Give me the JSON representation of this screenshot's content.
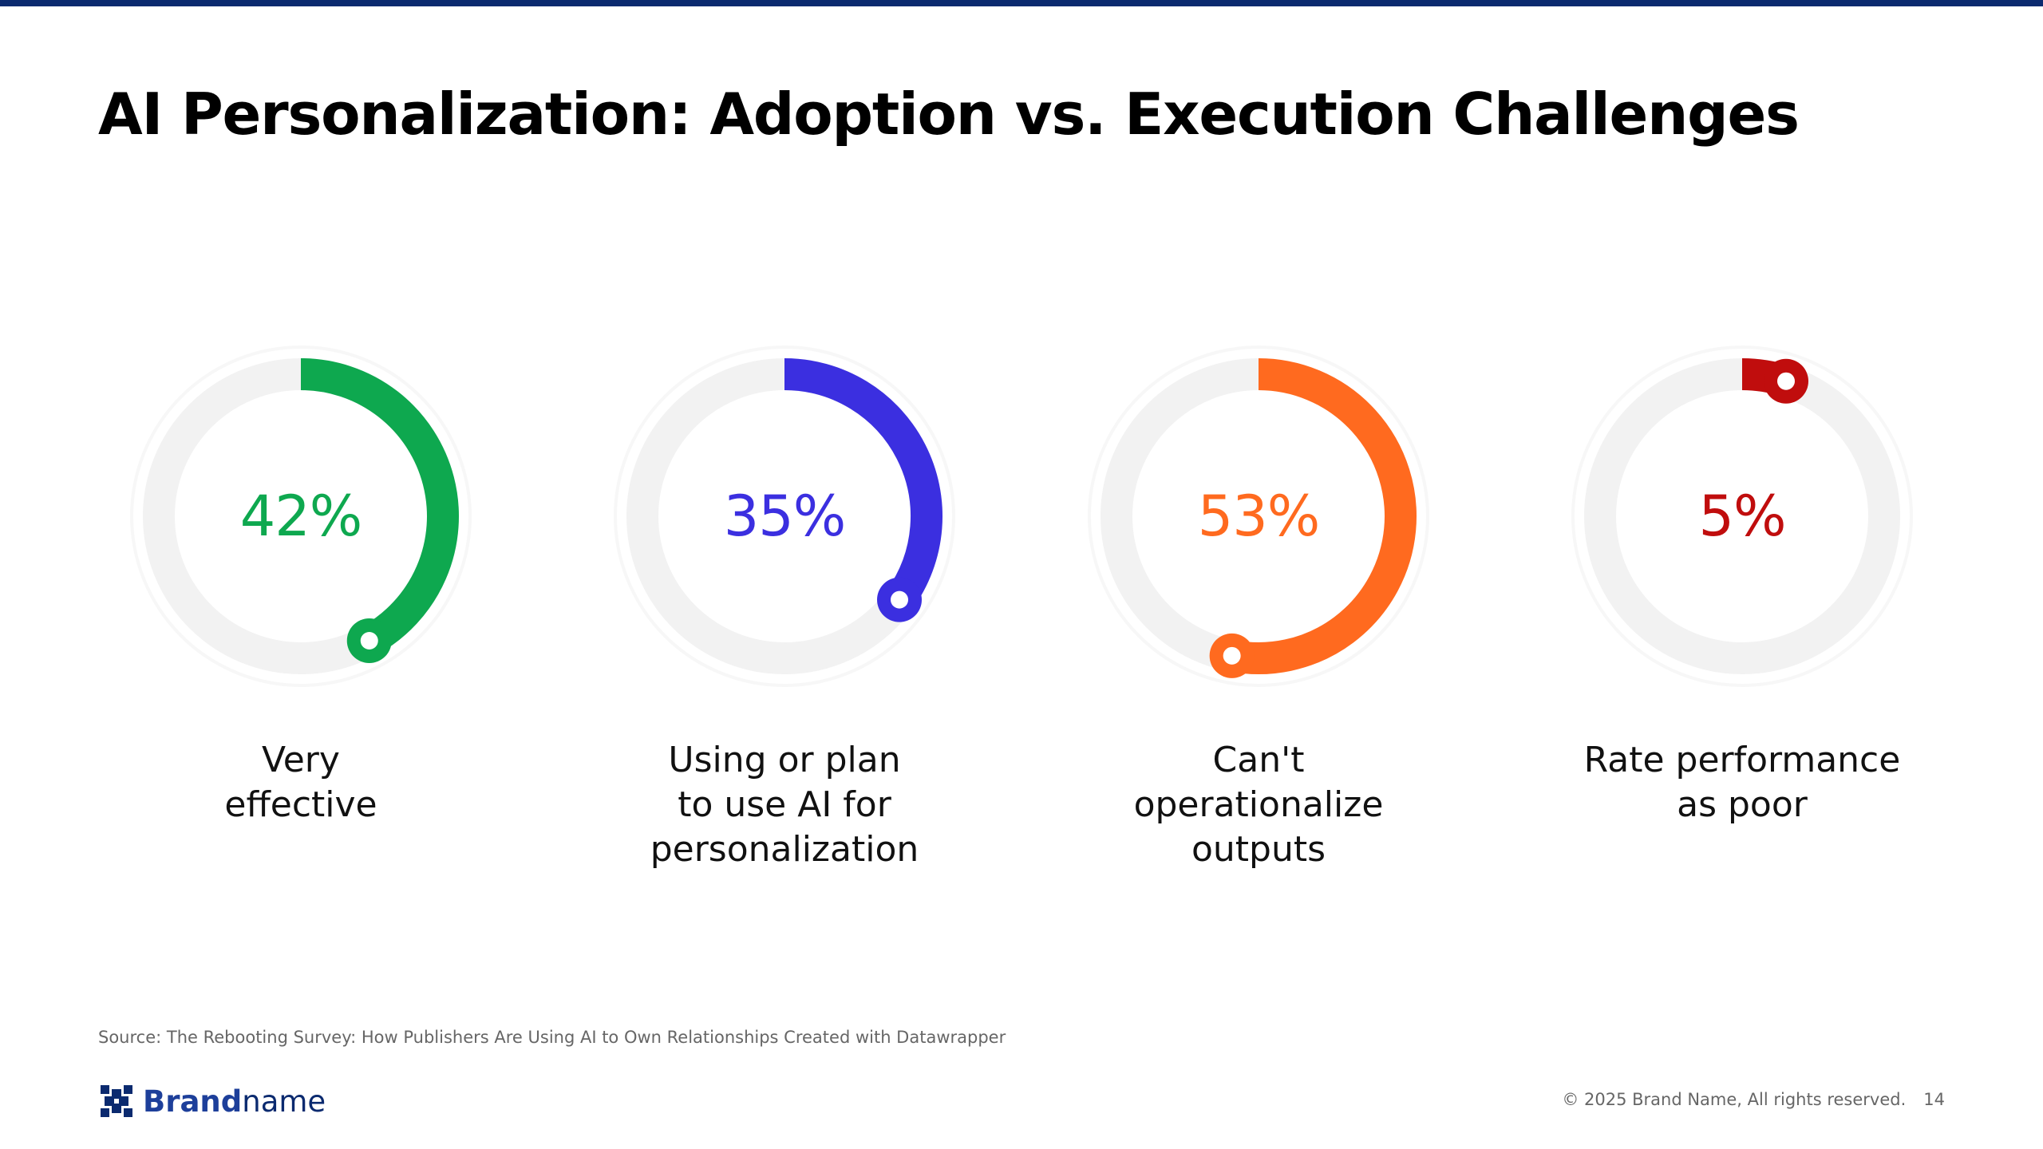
{
  "slide": {
    "title": "AI Personalization: Adoption vs. Execution Challenges",
    "source": "Source: The Rebooting Survey: How Publishers Are Using AI to Own Relationships Created with Datawrapper",
    "brand": {
      "bold": "Brand",
      "light": "name",
      "icon": "brand-logo-icon"
    },
    "copyright": "© 2025 Brand Name, All rights reserved.",
    "page_number": "14"
  },
  "colors": {
    "top_bar": "#0b2a6f",
    "track": "#f2f2f2"
  },
  "chart_data": {
    "type": "radial-progress",
    "title": "AI Personalization: Adoption vs. Execution Challenges",
    "unit": "%",
    "max": 100,
    "gauges": [
      {
        "value": 42,
        "display": "42%",
        "label_lines": [
          "Very",
          "effective"
        ],
        "color": "#0ea84f"
      },
      {
        "value": 35,
        "display": "35%",
        "label_lines": [
          "Using or plan",
          "to use AI for",
          "personalization"
        ],
        "color": "#3b2fe0"
      },
      {
        "value": 53,
        "display": "53%",
        "label_lines": [
          "Can't",
          "operationalize",
          "outputs"
        ],
        "color": "#ff6a1f"
      },
      {
        "value": 5,
        "display": "5%",
        "label_lines": [
          "Rate performance",
          "as poor"
        ],
        "color": "#c00d0d"
      }
    ]
  }
}
